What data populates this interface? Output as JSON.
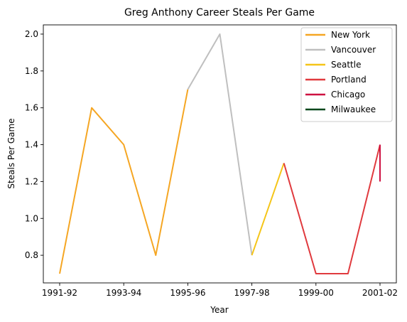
{
  "chart_data": {
    "type": "line",
    "title": "Greg Anthony Career Steals Per Game",
    "xlabel": "Year",
    "ylabel": "Steals Per Game",
    "x_categories": [
      "1991-92",
      "1992-93",
      "1993-94",
      "1994-95",
      "1995-96",
      "1996-97",
      "1997-98",
      "1998-99",
      "1999-00",
      "2000-01",
      "2001-02"
    ],
    "x_tick_labels": [
      "1991-92",
      "1993-94",
      "1995-96",
      "1997-98",
      "1999-00",
      "2001-02"
    ],
    "y_ticks": [
      "0.8",
      "1.0",
      "1.2",
      "1.4",
      "1.6",
      "1.8",
      "2.0"
    ],
    "ylim": [
      0.65,
      2.05
    ],
    "grid": false,
    "legend_position": "top-right",
    "series": [
      {
        "name": "New York",
        "color": "#f5a623",
        "points": [
          [
            "1991-92",
            0.7
          ],
          [
            "1992-93",
            1.6
          ],
          [
            "1993-94",
            1.4
          ],
          [
            "1994-95",
            0.8
          ],
          [
            "1995-96",
            1.7
          ]
        ]
      },
      {
        "name": "Vancouver",
        "color": "#bfbfbf",
        "points": [
          [
            "1995-96",
            1.7
          ],
          [
            "1996-97",
            2.0
          ],
          [
            "1997-98",
            0.8
          ]
        ]
      },
      {
        "name": "Seattle",
        "color": "#f5c518",
        "points": [
          [
            "1997-98",
            0.8
          ],
          [
            "1998-99",
            1.3
          ]
        ]
      },
      {
        "name": "Portland",
        "color": "#e03a3e",
        "points": [
          [
            "1998-99",
            1.3
          ],
          [
            "1999-00",
            0.7
          ],
          [
            "2000-01",
            0.7
          ],
          [
            "2001-02",
            1.4
          ]
        ]
      },
      {
        "name": "Chicago",
        "color": "#ce1141",
        "points": [
          [
            "2001-02",
            1.4
          ],
          [
            "2001-02",
            1.2
          ]
        ]
      },
      {
        "name": "Milwaukee",
        "color": "#00471b",
        "points": []
      }
    ]
  }
}
